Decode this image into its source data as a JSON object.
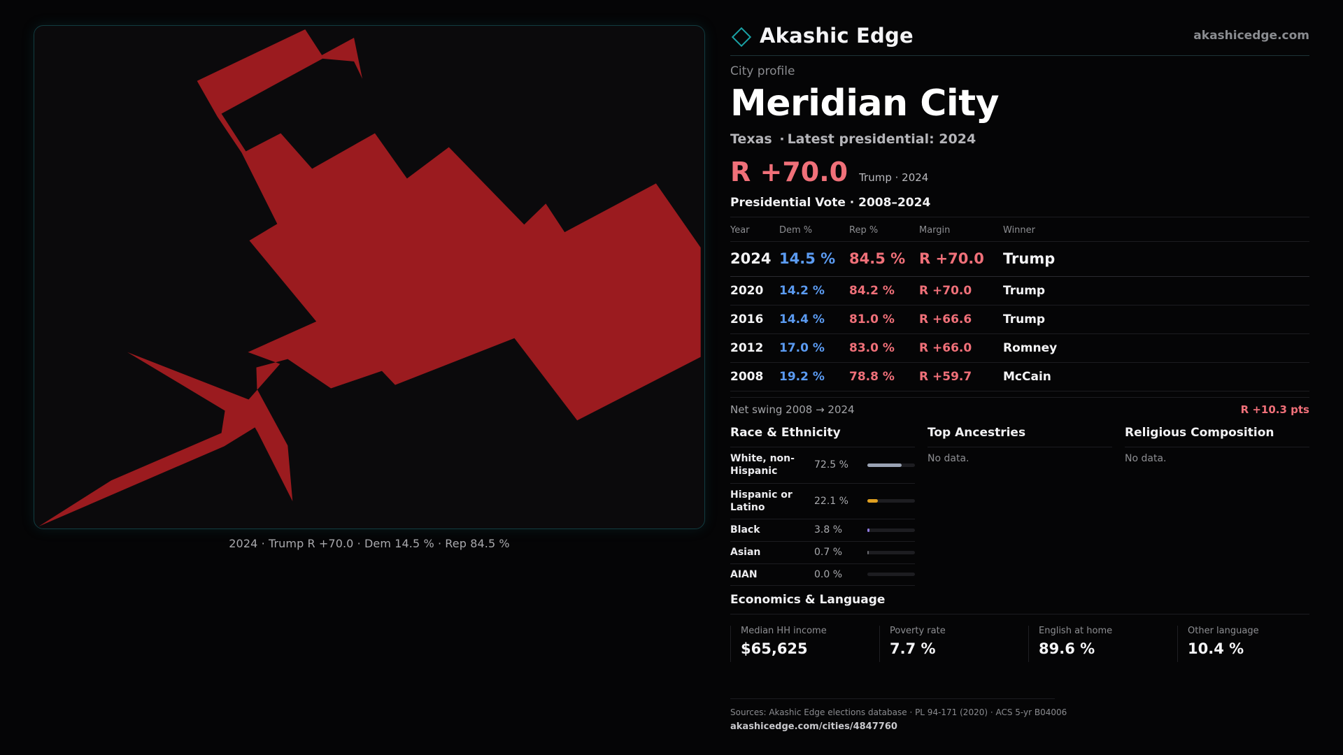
{
  "map": {
    "caption": "2024 · Trump R +70.0 · Dem 14.5 % · Rep 84.5 %",
    "fill_color": "#9b1b1f"
  },
  "header": {
    "brand_icon": "diamond-icon",
    "brand_name": "Akashic Edge",
    "site_url": "akashicedge.com"
  },
  "profile": {
    "eyebrow": "City profile",
    "city_name": "Meridian City",
    "state": "Texas",
    "latest_label": "Latest presidential: 2024",
    "margin_big": "R +70.0",
    "margin_meta": "Trump · 2024"
  },
  "vote_table": {
    "title": "Presidential Vote · 2008–2024",
    "headers": [
      "Year",
      "Dem %",
      "Rep %",
      "Margin",
      "Winner"
    ],
    "rows": [
      {
        "year": "2024",
        "dem": "14.5 %",
        "rep": "84.5 %",
        "margin": "R +70.0",
        "winner": "Trump"
      },
      {
        "year": "2020",
        "dem": "14.2 %",
        "rep": "84.2 %",
        "margin": "R +70.0",
        "winner": "Trump"
      },
      {
        "year": "2016",
        "dem": "14.4 %",
        "rep": "81.0 %",
        "margin": "R +66.6",
        "winner": "Trump"
      },
      {
        "year": "2012",
        "dem": "17.0 %",
        "rep": "83.0 %",
        "margin": "R +66.0",
        "winner": "Romney"
      },
      {
        "year": "2008",
        "dem": "19.2 %",
        "rep": "78.8 %",
        "margin": "R +59.7",
        "winner": "McCain"
      }
    ],
    "swing_label": "Net swing 2008 → 2024",
    "swing_value": "R +10.3 pts"
  },
  "race": {
    "title": "Race & Ethnicity",
    "rows": [
      {
        "name": "White, non-Hispanic",
        "pct": "72.5 %",
        "value": 0.725,
        "color": "#9aa3b4"
      },
      {
        "name": "Hispanic or Latino",
        "pct": "22.1 %",
        "value": 0.221,
        "color": "#e0a020"
      },
      {
        "name": "Black",
        "pct": "3.8 %",
        "value": 0.038,
        "color": "#8f7ae0"
      },
      {
        "name": "Asian",
        "pct": "0.7 %",
        "value": 0.007,
        "color": "#6a6a70"
      },
      {
        "name": "AIAN",
        "pct": "0.0 %",
        "value": 0.0,
        "color": "#6a6a70"
      }
    ]
  },
  "ancestries": {
    "title": "Top Ancestries",
    "empty": "No data."
  },
  "religion": {
    "title": "Religious Composition",
    "empty": "No data."
  },
  "economics": {
    "title": "Economics & Language",
    "items": [
      {
        "label": "Median HH income",
        "value": "$65,625"
      },
      {
        "label": "Poverty rate",
        "value": "7.7 %"
      },
      {
        "label": "English at home",
        "value": "89.6 %"
      },
      {
        "label": "Other language",
        "value": "10.4 %"
      }
    ]
  },
  "sources": {
    "line": "Sources: Akashic Edge elections database · PL 94-171 (2020) · ACS 5-yr B04006",
    "url": "akashicedge.com/cities/4847760"
  }
}
